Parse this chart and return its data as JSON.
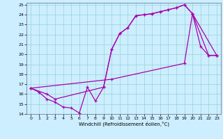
{
  "xlabel": "Windchill (Refroidissement éolien,°C)",
  "xlim": [
    -0.5,
    23.5
  ],
  "ylim": [
    14,
    25.2
  ],
  "xticks": [
    0,
    1,
    2,
    3,
    4,
    5,
    6,
    7,
    8,
    9,
    10,
    11,
    12,
    13,
    14,
    15,
    16,
    17,
    18,
    19,
    20,
    21,
    22,
    23
  ],
  "yticks": [
    14,
    15,
    16,
    17,
    18,
    19,
    20,
    21,
    22,
    23,
    24,
    25
  ],
  "bg_color": "#cceeff",
  "line_color": "#aa00aa",
  "line1_x": [
    0,
    1,
    2,
    3,
    4,
    5,
    6,
    7,
    8,
    9,
    10,
    11,
    12,
    13,
    14,
    15,
    16,
    17,
    18,
    19,
    20,
    21,
    22,
    23
  ],
  "line1_y": [
    16.6,
    16.2,
    15.5,
    15.2,
    14.7,
    14.6,
    14.1,
    16.7,
    15.3,
    16.7,
    20.5,
    22.1,
    22.7,
    23.9,
    24.0,
    24.1,
    24.3,
    24.5,
    24.7,
    25.0,
    24.1,
    20.8,
    19.9,
    19.9
  ],
  "line2_x": [
    0,
    2,
    3,
    9,
    10,
    11,
    12,
    13,
    14,
    15,
    16,
    17,
    18,
    19,
    20,
    22,
    23
  ],
  "line2_y": [
    16.6,
    16.0,
    15.5,
    16.7,
    20.5,
    22.1,
    22.7,
    23.9,
    24.0,
    24.1,
    24.3,
    24.5,
    24.7,
    25.0,
    24.1,
    19.9,
    19.9
  ],
  "line3_x": [
    0,
    10,
    19,
    20,
    23
  ],
  "line3_y": [
    16.6,
    17.5,
    19.1,
    24.1,
    19.9
  ]
}
